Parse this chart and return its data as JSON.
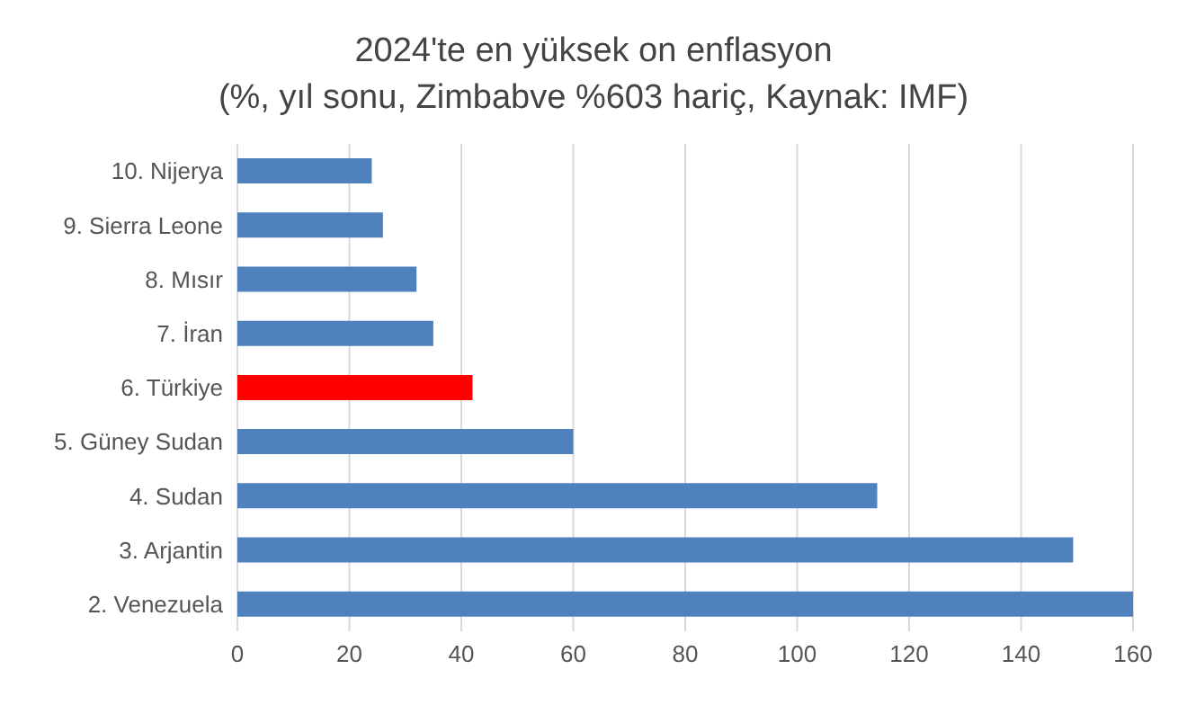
{
  "chart_data": {
    "type": "bar",
    "orientation": "horizontal",
    "title": "2024'te en yüksek on enflasyon",
    "subtitle": "(%, yıl sonu, Zimbabve %603 hariç, Kaynak: IMF)",
    "categories": [
      "10. Nijerya",
      "9. Sierra Leone",
      "8. Mısır",
      "7. İran",
      "6. Türkiye",
      "5. Güney Sudan",
      "4. Sudan",
      "3. Arjantin",
      "2. Venezuela"
    ],
    "values": [
      24,
      26,
      32,
      35,
      42,
      60,
      114.3,
      149.3,
      160
    ],
    "colors": [
      "#4f81bd",
      "#4f81bd",
      "#4f81bd",
      "#4f81bd",
      "#ff0000",
      "#4f81bd",
      "#4f81bd",
      "#4f81bd",
      "#4f81bd"
    ],
    "xlim": [
      0,
      160
    ],
    "xticks": [
      0,
      20,
      40,
      60,
      80,
      100,
      120,
      140,
      160
    ],
    "grid": "x"
  }
}
